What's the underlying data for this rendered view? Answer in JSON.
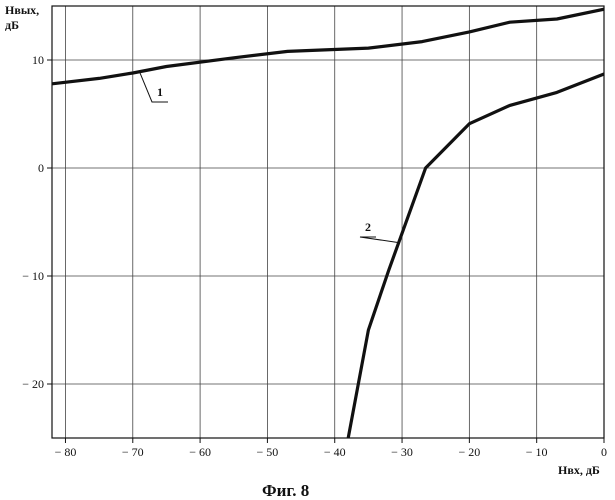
{
  "chart_data": {
    "type": "line",
    "title": "",
    "xlabel": "Нвх, дБ",
    "ylabel_line1": "Нвых,",
    "ylabel_line2": "дБ",
    "xlim": [
      -82,
      0
    ],
    "ylim": [
      -25,
      15
    ],
    "x_ticks": [
      -80,
      -70,
      -60,
      -50,
      -40,
      -30,
      -20,
      -10,
      0
    ],
    "y_ticks": [
      -20,
      -10,
      0,
      10
    ],
    "x_tick_labels": [
      "− 80",
      "− 70",
      "− 60",
      "− 50",
      "− 40",
      "− 30",
      "− 20",
      "− 10",
      "0"
    ],
    "y_tick_labels": [
      "− 20",
      "− 10",
      "0",
      "10"
    ],
    "grid": true,
    "series": [
      {
        "name": "1",
        "x": [
          -82,
          -75,
          -70,
          -65,
          -55,
          -47,
          -35,
          -27,
          -20,
          -14,
          -7,
          0
        ],
        "y": [
          7.8,
          8.3,
          8.8,
          9.4,
          10.2,
          10.8,
          11.1,
          11.7,
          12.6,
          13.5,
          13.8,
          14.7
        ]
      },
      {
        "name": "2",
        "x": [
          -38,
          -35,
          -32,
          -26.5,
          -20,
          -14,
          -7,
          0
        ],
        "y": [
          -25,
          -15,
          -9.5,
          0,
          4.1,
          5.8,
          7,
          8.7
        ]
      }
    ]
  },
  "caption": "Фиг. 8",
  "colors": {
    "line": "#111111",
    "grid": "#444444",
    "frame": "#111111",
    "background": "#ffffff"
  }
}
